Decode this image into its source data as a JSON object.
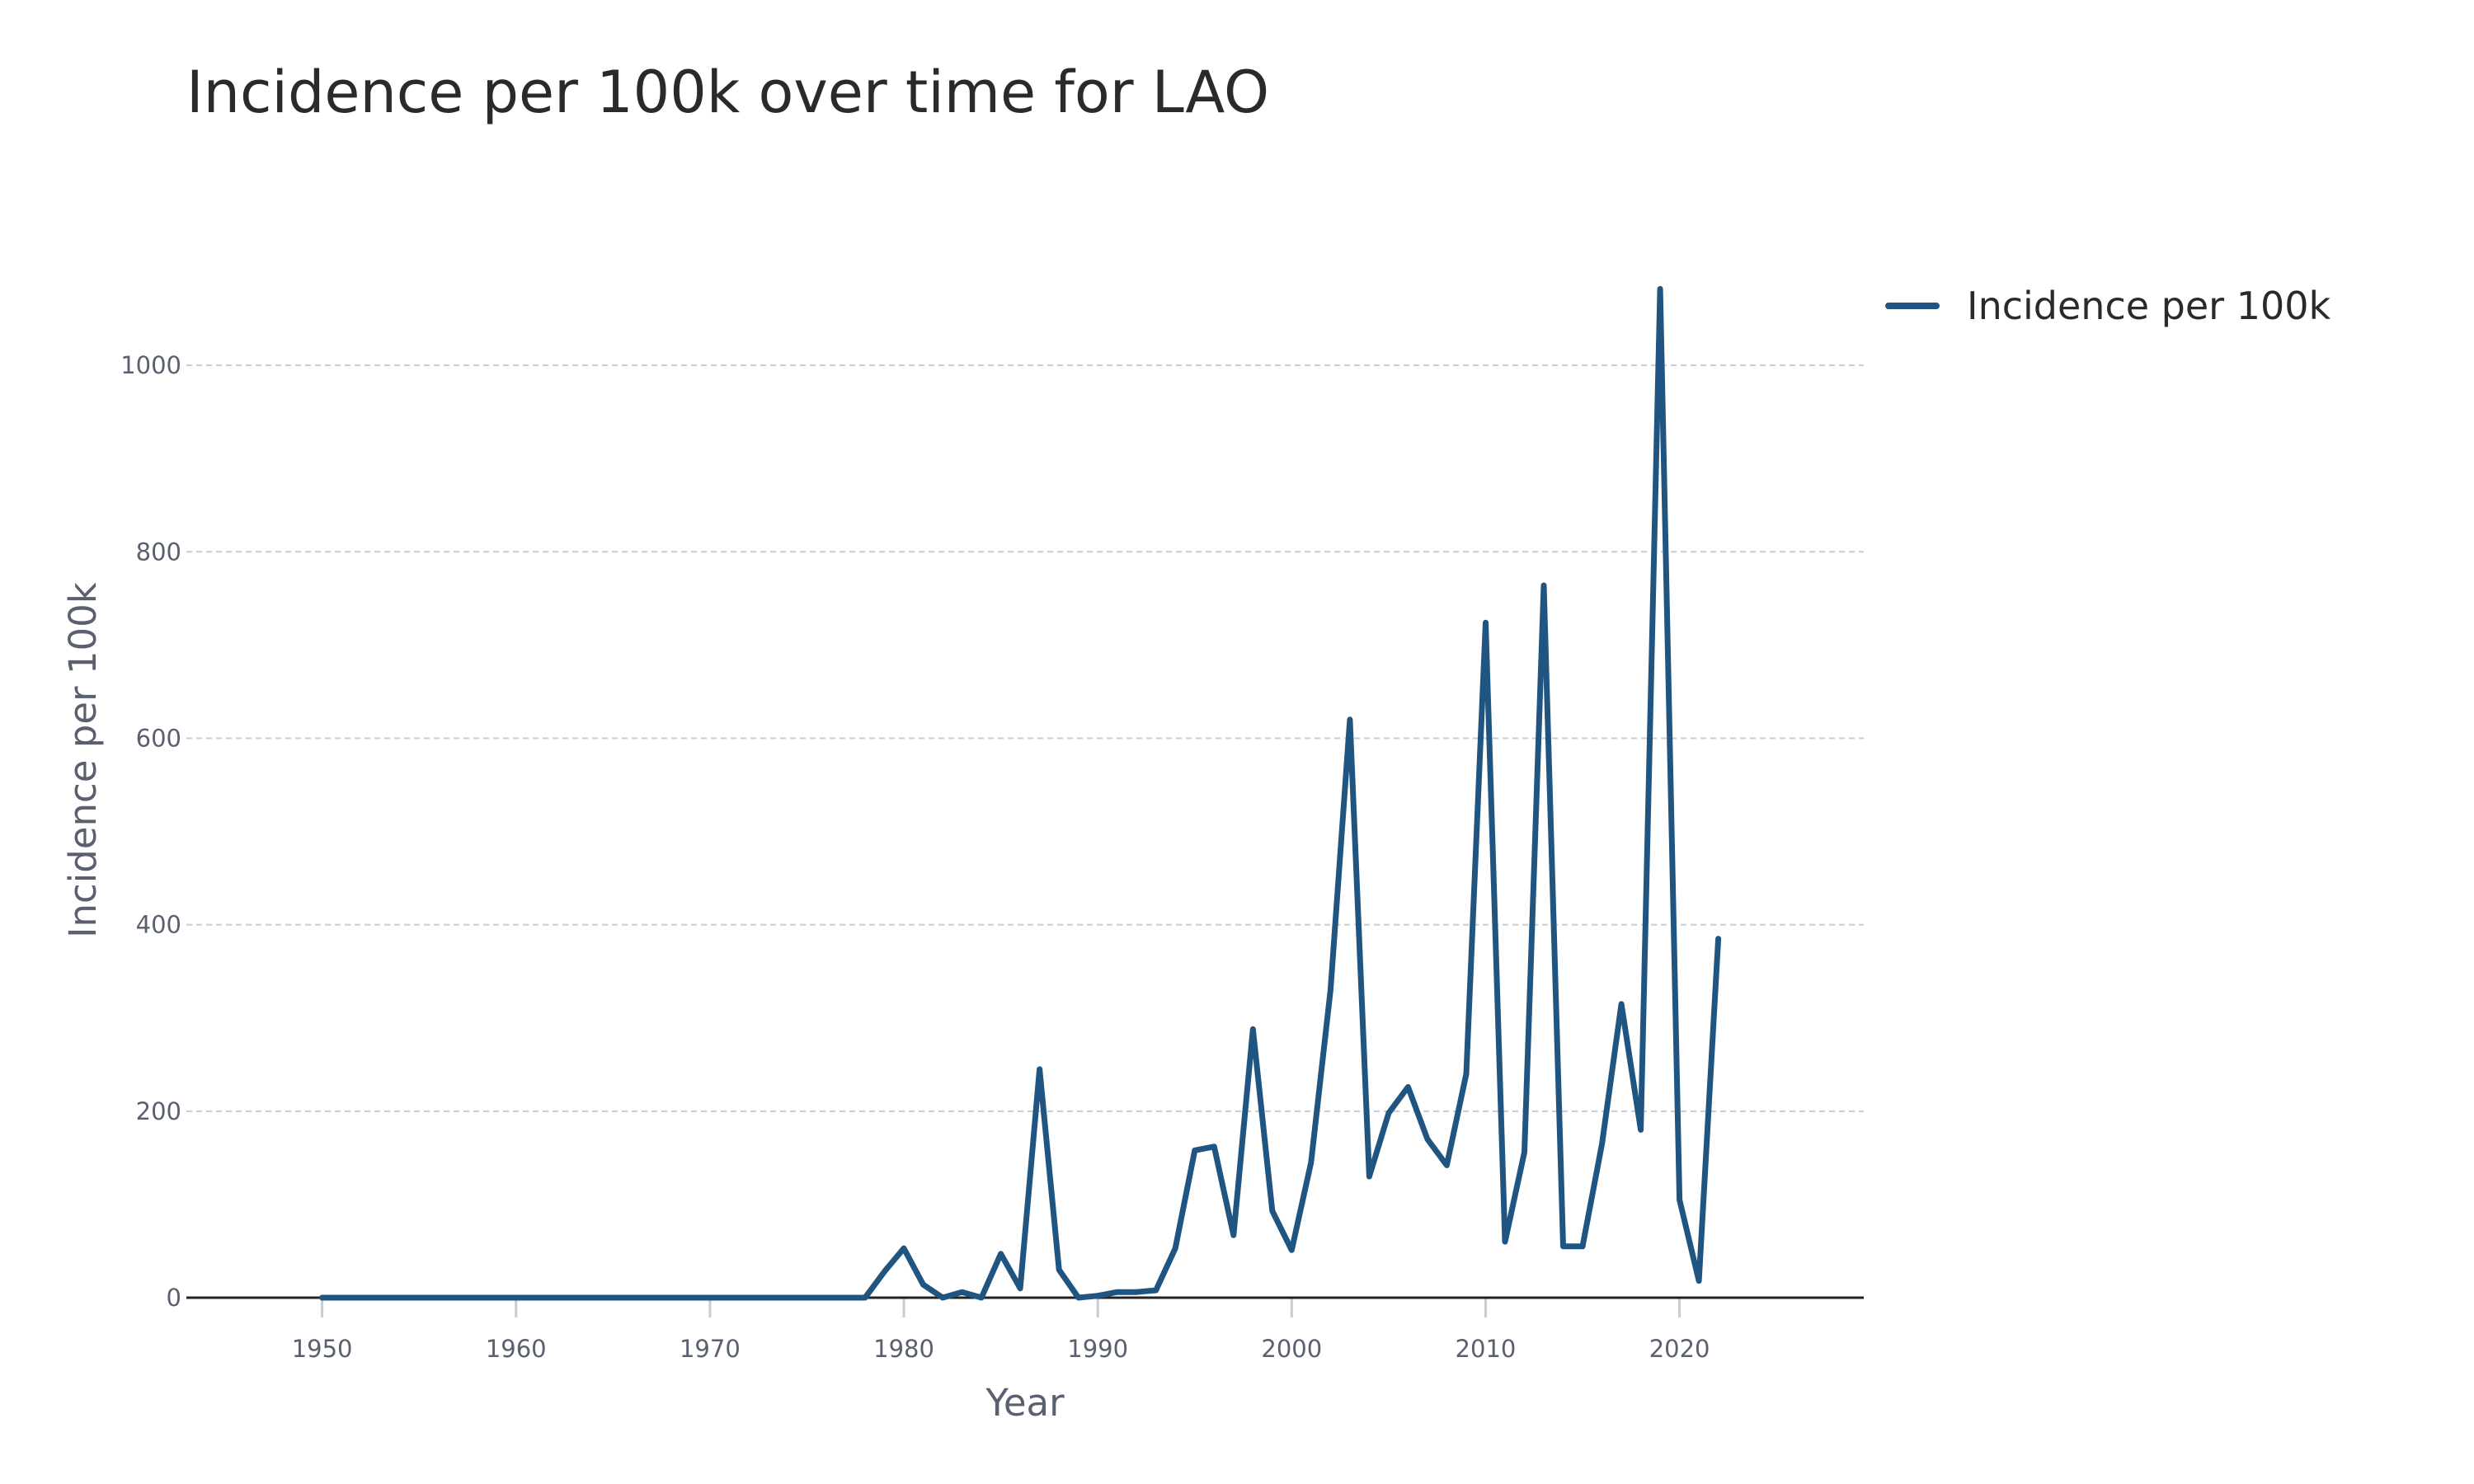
{
  "colors": {
    "series": "#1f5580",
    "grid": "#c8ccd4",
    "axis": "#222222",
    "text": "#2a2a2a",
    "tick_text": "#5a6070"
  },
  "chart_data": {
    "type": "line",
    "title": "Incidence per 100k over time for LAO",
    "xlabel": "Year",
    "ylabel": "Incidence per 100k",
    "xlim": [
      1943,
      2029.5
    ],
    "ylim": [
      0,
      1100
    ],
    "x_ticks": [
      1950,
      1960,
      1970,
      1980,
      1990,
      2000,
      2010,
      2020
    ],
    "y_ticks": [
      0,
      200,
      400,
      600,
      800,
      1000
    ],
    "grid": "horizontal dashed",
    "legend_position": "top-right outside plot",
    "series": [
      {
        "name": "Incidence per 100k",
        "color": "#1f5580",
        "x": [
          1950,
          1951,
          1952,
          1953,
          1954,
          1955,
          1956,
          1957,
          1958,
          1959,
          1960,
          1961,
          1962,
          1963,
          1964,
          1965,
          1966,
          1967,
          1968,
          1969,
          1970,
          1971,
          1972,
          1973,
          1974,
          1975,
          1976,
          1977,
          1978,
          1979,
          1980,
          1981,
          1982,
          1983,
          1984,
          1985,
          1986,
          1987,
          1988,
          1989,
          1990,
          1991,
          1992,
          1993,
          1994,
          1995,
          1996,
          1997,
          1998,
          1999,
          2000,
          2001,
          2002,
          2003,
          2004,
          2005,
          2006,
          2007,
          2008,
          2009,
          2010,
          2011,
          2012,
          2013,
          2014,
          2015,
          2016,
          2017,
          2018,
          2019,
          2020,
          2021,
          2022
        ],
        "y": [
          0,
          0,
          0,
          0,
          0,
          0,
          0,
          0,
          0,
          0,
          0,
          0,
          0,
          0,
          0,
          0,
          0,
          0,
          0,
          0,
          0,
          0,
          0,
          0,
          0,
          0,
          0,
          0,
          0,
          28,
          53,
          14,
          0,
          6,
          0,
          47,
          10,
          245,
          30,
          0,
          2,
          6,
          6,
          8,
          53,
          158,
          162,
          67,
          288,
          93,
          51,
          145,
          330,
          620,
          130,
          198,
          226,
          170,
          142,
          240,
          724,
          60,
          156,
          764,
          55,
          55,
          165,
          315,
          180,
          1082,
          105,
          18,
          385
        ]
      }
    ]
  }
}
